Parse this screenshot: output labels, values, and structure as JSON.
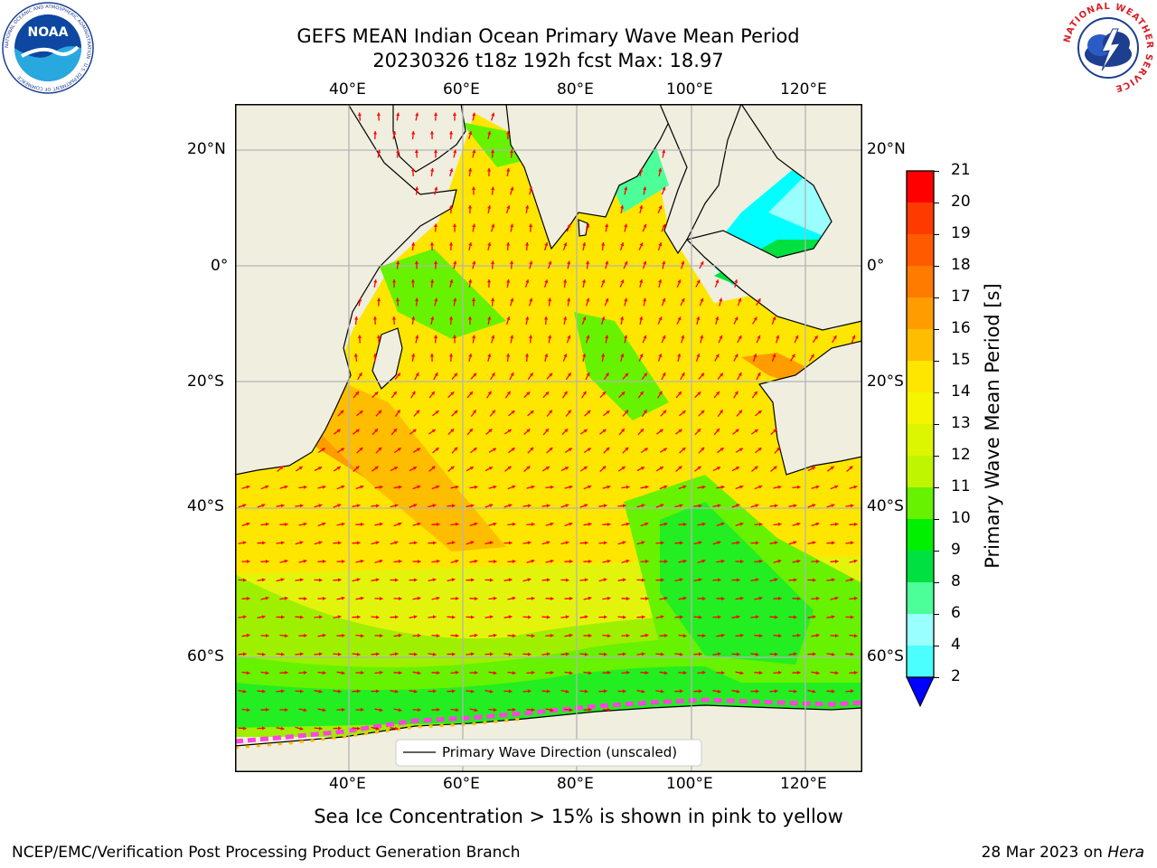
{
  "title": {
    "line1": "GEFS MEAN Indian Ocean Primary Wave Mean Period",
    "line2": "20230326 t18z 192h fcst   Max: 18.97"
  },
  "map": {
    "lon_labels": [
      "40°E",
      "60°E",
      "80°E",
      "100°E",
      "120°E"
    ],
    "lat_labels": [
      "20°N",
      "0°",
      "20°S",
      "40°S",
      "60°S"
    ],
    "legend_label": "Primary Wave Direction (unscaled)",
    "colors": {
      "land": "#efeedf",
      "coast": "#000000",
      "grid": "#b4b4b4",
      "arrow": "#ff0000"
    }
  },
  "colorbar": {
    "label": "Primary Wave Mean Period [s]",
    "ticks": [
      "21",
      "20",
      "19",
      "18",
      "17",
      "16",
      "15",
      "14",
      "13",
      "12",
      "11",
      "10",
      "9",
      "8",
      "6",
      "4",
      "2"
    ],
    "colors": [
      "#ff0000",
      "#ff3a00",
      "#ff5a00",
      "#ff7b00",
      "#ff9d00",
      "#ffbd00",
      "#ffe600",
      "#f5f500",
      "#dcf500",
      "#c0f500",
      "#66f200",
      "#00f000",
      "#00e040",
      "#4cff99",
      "#99ffff",
      "#4bffff",
      "#00ffff",
      "#00c8ff",
      "#0078ff",
      "#0000ff"
    ]
  },
  "sea_ice_note": "Sea Ice Concentration > 15% is shown in pink to yellow",
  "footer": {
    "left": "NCEP/EMC/Verification Post Processing Product Generation Branch",
    "date": "28 Mar 2023 on",
    "machine": "Hera"
  },
  "logos": {
    "noaa_text": "NOAA",
    "noaa_ring": "NATIONAL OCEANIC AND ATMOSPHERIC ADMINISTRATION · U.S. DEPARTMENT OF COMMERCE",
    "nws_ring": "NATIONAL WEATHER SERVICE"
  }
}
